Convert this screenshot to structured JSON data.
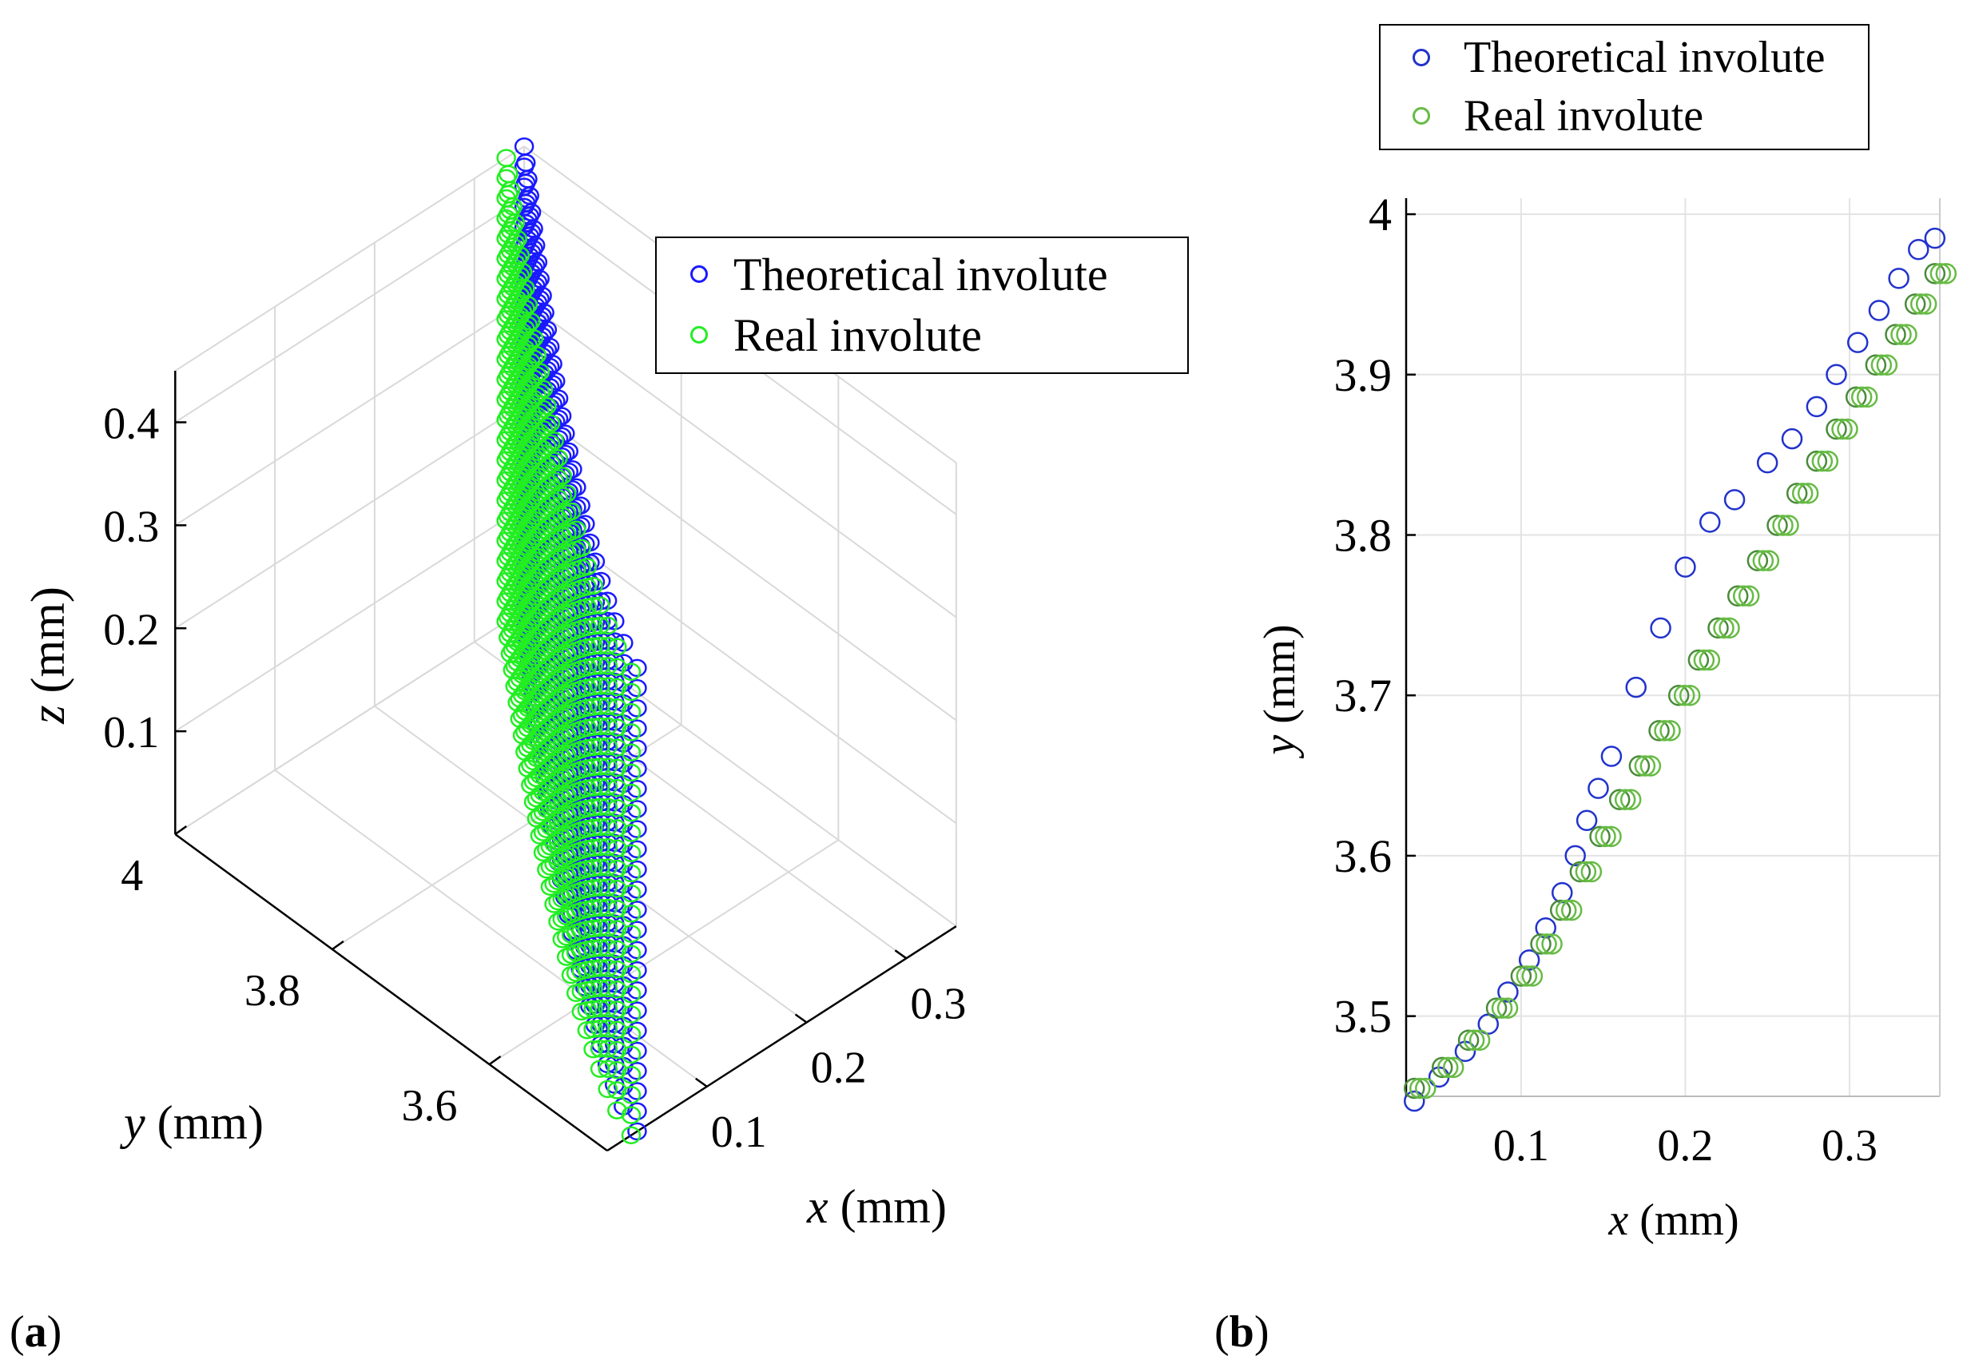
{
  "colors": {
    "theoretical_a": "#1a1aff",
    "real_a": "#22ee22",
    "theoretical_b": "#2233cc",
    "real_b": "#66bb44",
    "overlap_b": "#4a8a3a",
    "grid": "#d9d9d9",
    "axis": "#000000"
  },
  "panels": {
    "a": {
      "label_open": "(",
      "label_letter": "a",
      "label_close": ")"
    },
    "b": {
      "label_open": "(",
      "label_letter": "b",
      "label_close": ")"
    }
  },
  "chart_data": [
    {
      "id": "a",
      "type": "scatter",
      "projection": "3d",
      "legend": [
        {
          "name": "Theoretical involute",
          "marker": "circle",
          "color": "#1a1aff"
        },
        {
          "name": "Real involute",
          "marker": "circle",
          "color": "#22ee22"
        }
      ],
      "legend_placement": "top-right",
      "xlabel_var": "x",
      "xlabel_unit": " (mm)",
      "ylabel_var": "y",
      "ylabel_unit": " (mm)",
      "zlabel_var": "z",
      "zlabel_unit": " (mm)",
      "xlim": [
        0.0,
        0.35
      ],
      "ylim": [
        3.45,
        4.0
      ],
      "zlim": [
        0.0,
        0.45
      ],
      "xticks": [
        0.1,
        0.2,
        0.3
      ],
      "yticks": [
        3.6,
        3.8,
        4
      ],
      "zticks": [
        0.1,
        0.2,
        0.3,
        0.4
      ],
      "xtick_labels": [
        "0.1",
        "0.2",
        "0.3"
      ],
      "ytick_labels": [
        "3.6",
        "3.8",
        "4"
      ],
      "ztick_labels": [
        "0.1",
        "0.2",
        "0.3",
        "0.4"
      ],
      "grid": true,
      "surface": {
        "involute_x_range": [
          0.03,
          0.35
        ],
        "involute_y_range": [
          3.45,
          4.0
        ],
        "z_range": [
          0.0,
          0.45
        ],
        "profile_points": 30,
        "z_layers": 24
      },
      "series": [
        {
          "name": "Theoretical involute",
          "x_offset": 0.0,
          "color": "#1a1aff"
        },
        {
          "name": "Real involute",
          "x_offset": -0.012,
          "color": "#22ee22"
        }
      ]
    },
    {
      "id": "b",
      "type": "scatter",
      "legend": [
        {
          "name": "Theoretical involute",
          "marker": "circle",
          "color": "#2233cc"
        },
        {
          "name": "Real involute",
          "marker": "circle",
          "color": "#66bb44"
        }
      ],
      "legend_placement": "top",
      "xlabel_var": "x",
      "xlabel_unit": " (mm)",
      "ylabel_var": "y",
      "ylabel_unit": " (mm)",
      "xlim": [
        0.03,
        0.355
      ],
      "ylim": [
        3.45,
        4.01
      ],
      "xticks": [
        0.1,
        0.2,
        0.3
      ],
      "yticks": [
        3.5,
        3.6,
        3.7,
        3.8,
        3.9,
        4
      ],
      "xtick_labels": [
        "0.1",
        "0.2",
        "0.3"
      ],
      "ytick_labels": [
        "3.5",
        "3.6",
        "3.7",
        "3.8",
        "3.9",
        "4"
      ],
      "grid": true,
      "series": [
        {
          "name": "Theoretical involute",
          "x": [
            0.035,
            0.05,
            0.066,
            0.08,
            0.092,
            0.105,
            0.115,
            0.125,
            0.133,
            0.14,
            0.147,
            0.155,
            0.17,
            0.185,
            0.2,
            0.215,
            0.23,
            0.25,
            0.265,
            0.28,
            0.292,
            0.305,
            0.318,
            0.33,
            0.342,
            0.352
          ],
          "y": [
            3.447,
            3.462,
            3.478,
            3.495,
            3.515,
            3.535,
            3.555,
            3.577,
            3.6,
            3.622,
            3.642,
            3.662,
            3.705,
            3.742,
            3.78,
            3.808,
            3.822,
            3.845,
            3.86,
            3.88,
            3.9,
            3.92,
            3.94,
            3.96,
            3.978,
            3.985
          ]
        },
        {
          "name": "Real involute",
          "x": [
            0.035,
            0.052,
            0.068,
            0.085,
            0.1,
            0.112,
            0.124,
            0.136,
            0.148,
            0.16,
            0.172,
            0.184,
            0.196,
            0.208,
            0.22,
            0.232,
            0.244,
            0.256,
            0.268,
            0.28,
            0.292,
            0.304,
            0.316,
            0.328,
            0.34,
            0.352
          ],
          "y": [
            3.455,
            3.468,
            3.485,
            3.505,
            3.525,
            3.545,
            3.566,
            3.59,
            3.612,
            3.635,
            3.656,
            3.678,
            3.7,
            3.722,
            3.742,
            3.762,
            3.784,
            3.806,
            3.826,
            3.846,
            3.866,
            3.886,
            3.906,
            3.925,
            3.944,
            3.963
          ]
        }
      ]
    }
  ]
}
